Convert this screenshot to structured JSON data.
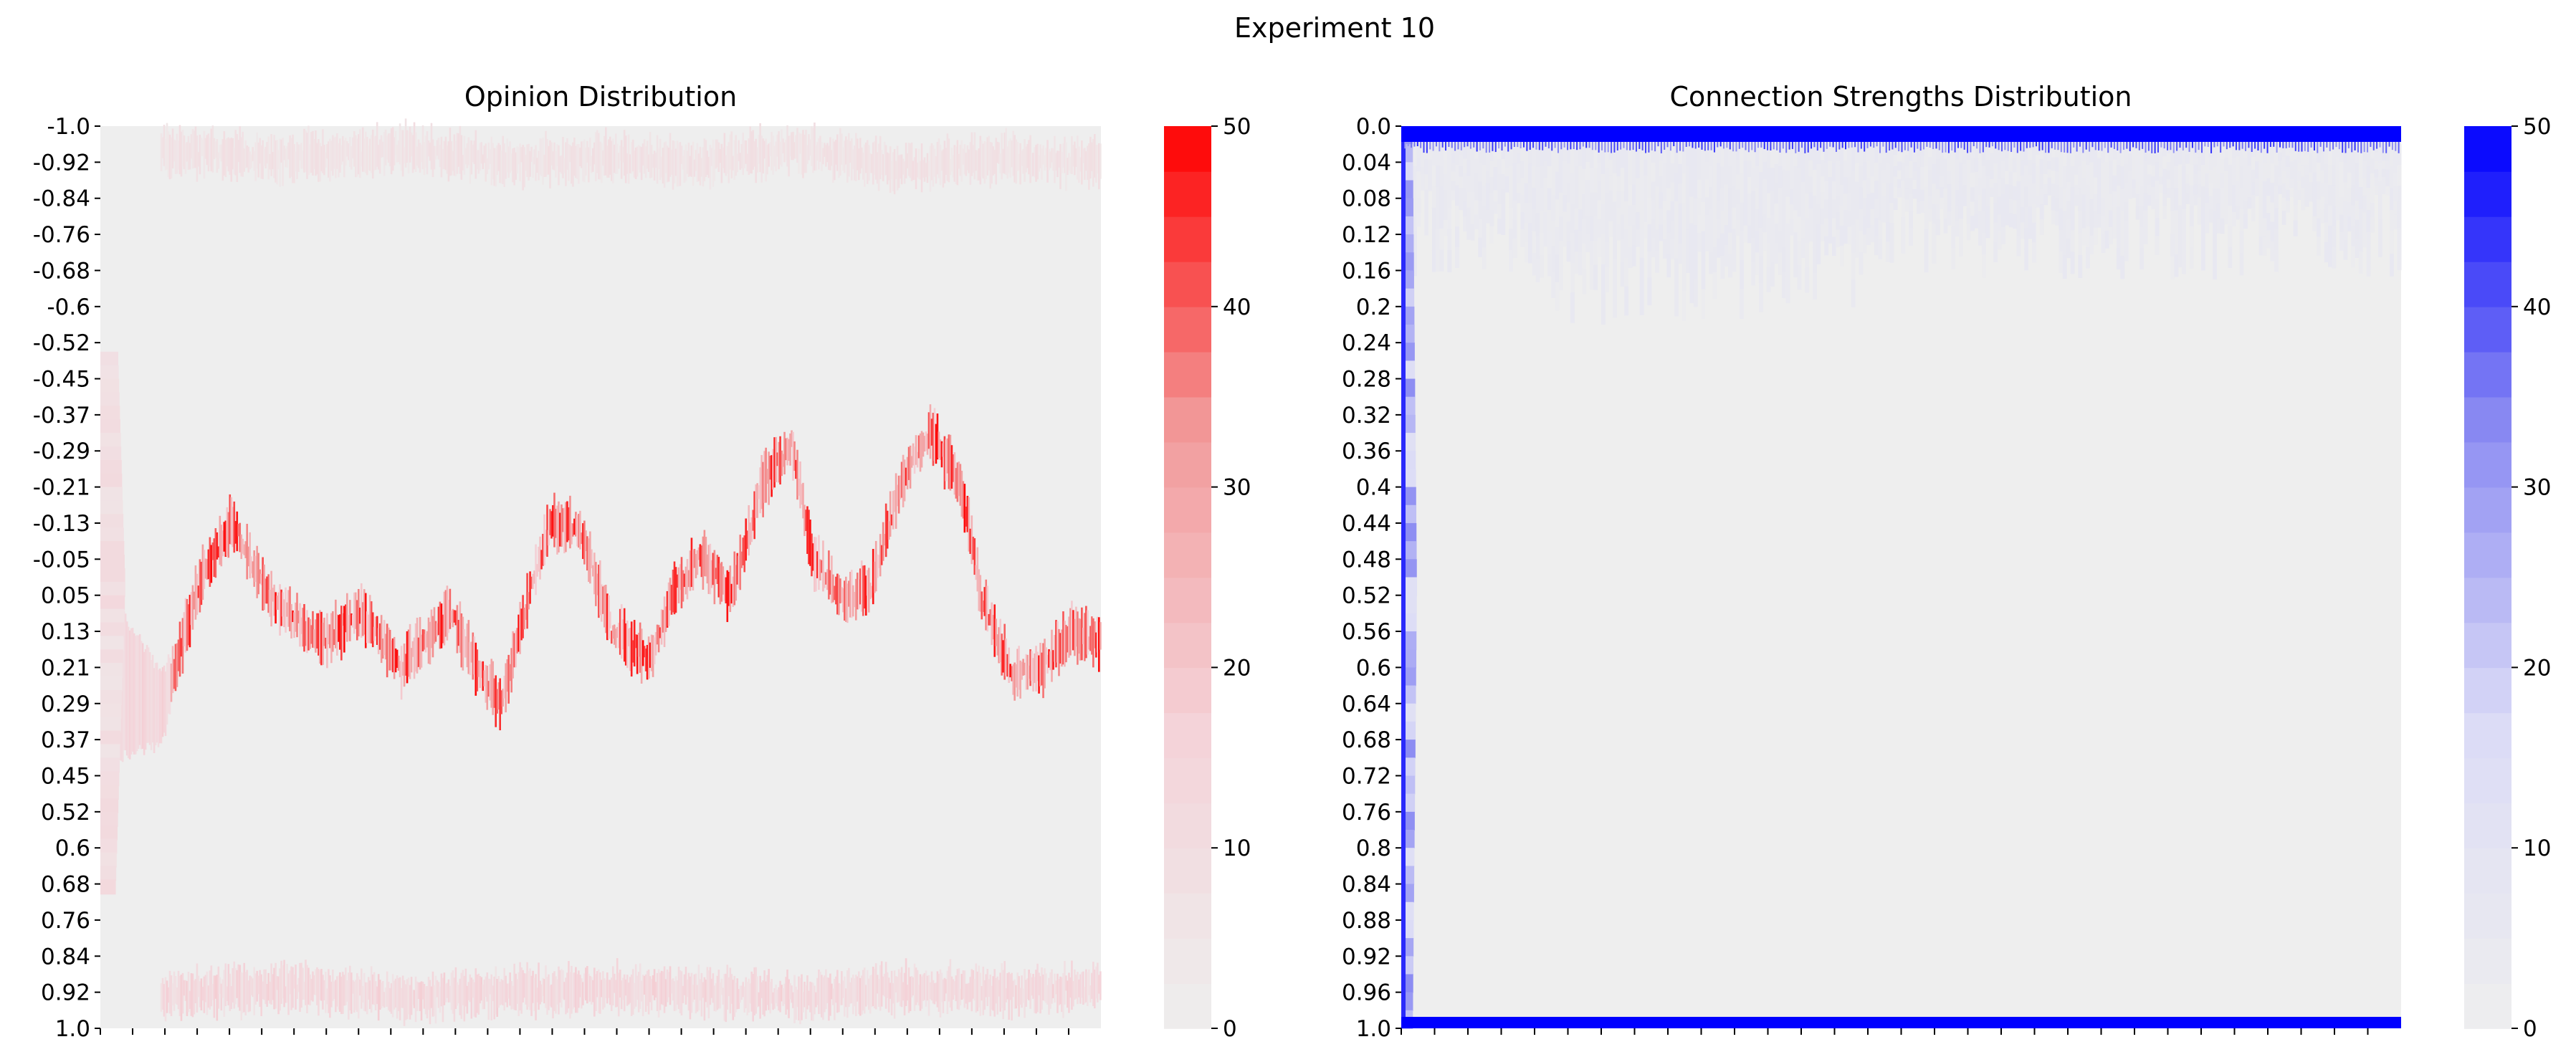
{
  "figure": {
    "title": "Experiment 10"
  },
  "chart_data": [
    {
      "type": "heatmap",
      "title": "Opinion Distribution",
      "xlabel": "",
      "ylabel": "",
      "y_tick_labels": [
        "-1.0",
        "-0.92",
        "-0.84",
        "-0.76",
        "-0.68",
        "-0.6",
        "-0.52",
        "-0.45",
        "-0.37",
        "-0.29",
        "-0.21",
        "-0.13",
        "-0.05",
        "0.05",
        "0.13",
        "0.21",
        "0.29",
        "0.37",
        "0.45",
        "0.52",
        "0.6",
        "0.68",
        "0.76",
        "0.84",
        "0.92",
        "1.0"
      ],
      "y_range": [
        -1.0,
        1.0
      ],
      "x_tick_count": 31,
      "x_tick_labels_visible": false,
      "colorbar": {
        "min": 0,
        "max": 50,
        "ticks": [
          0,
          10,
          20,
          30,
          40,
          50
        ],
        "levels": 20,
        "colors": [
          "#eeeeee",
          "#f4d2d8",
          "#f29a9a",
          "#ff0000"
        ]
      },
      "background_color": "#eeeeee",
      "series": [
        {
          "band": "upper cluster",
          "opinion_center": -0.93,
          "count_peak": 10,
          "path": [
            [
              0.0,
              -0.95
            ],
            [
              0.1,
              -0.94
            ],
            [
              0.2,
              -0.93
            ],
            [
              0.3,
              -0.95
            ],
            [
              0.4,
              -0.92
            ],
            [
              0.5,
              -0.93
            ],
            [
              0.6,
              -0.92
            ],
            [
              0.7,
              -0.95
            ],
            [
              0.8,
              -0.91
            ],
            [
              0.9,
              -0.93
            ],
            [
              1.0,
              -0.92
            ]
          ]
        },
        {
          "band": "central cluster",
          "opinion_center": 0.1,
          "count_peak": 50,
          "path": [
            [
              0.0,
              0.22
            ],
            [
              0.04,
              0.26
            ],
            [
              0.06,
              0.3
            ],
            [
              0.1,
              0.0
            ],
            [
              0.13,
              -0.12
            ],
            [
              0.17,
              0.05
            ],
            [
              0.22,
              0.14
            ],
            [
              0.26,
              0.08
            ],
            [
              0.3,
              0.2
            ],
            [
              0.35,
              0.08
            ],
            [
              0.38,
              0.22
            ],
            [
              0.4,
              0.28
            ],
            [
              0.43,
              0.02
            ],
            [
              0.45,
              -0.12
            ],
            [
              0.48,
              -0.1
            ],
            [
              0.51,
              0.12
            ],
            [
              0.55,
              0.18
            ],
            [
              0.57,
              0.04
            ],
            [
              0.6,
              -0.05
            ],
            [
              0.63,
              0.04
            ],
            [
              0.66,
              -0.2
            ],
            [
              0.69,
              -0.3
            ],
            [
              0.71,
              -0.05
            ],
            [
              0.74,
              0.05
            ],
            [
              0.77,
              0.02
            ],
            [
              0.8,
              -0.22
            ],
            [
              0.83,
              -0.32
            ],
            [
              0.86,
              -0.2
            ],
            [
              0.88,
              0.05
            ],
            [
              0.91,
              0.22
            ],
            [
              0.94,
              0.2
            ],
            [
              0.97,
              0.12
            ],
            [
              1.0,
              0.14
            ]
          ]
        },
        {
          "band": "lower cluster",
          "opinion_center": 0.92,
          "count_peak": 18,
          "path": [
            [
              0.0,
              0.94
            ],
            [
              0.1,
              0.92
            ],
            [
              0.2,
              0.91
            ],
            [
              0.3,
              0.93
            ],
            [
              0.4,
              0.92
            ],
            [
              0.5,
              0.91
            ],
            [
              0.6,
              0.92
            ],
            [
              0.7,
              0.93
            ],
            [
              0.8,
              0.91
            ],
            [
              0.9,
              0.92
            ],
            [
              1.0,
              0.91
            ]
          ]
        }
      ]
    },
    {
      "type": "heatmap",
      "title": "Connection Strengths Distribution",
      "xlabel": "",
      "ylabel": "",
      "y_tick_labels": [
        "0.0",
        "0.04",
        "0.08",
        "0.12",
        "0.16",
        "0.2",
        "0.24",
        "0.28",
        "0.32",
        "0.36",
        "0.4",
        "0.44",
        "0.48",
        "0.52",
        "0.56",
        "0.6",
        "0.64",
        "0.68",
        "0.72",
        "0.76",
        "0.8",
        "0.84",
        "0.88",
        "0.92",
        "0.96",
        "1.0"
      ],
      "y_range": [
        0.0,
        1.0
      ],
      "x_tick_count": 30,
      "x_tick_labels_visible": false,
      "colorbar": {
        "min": 0,
        "max": 50,
        "ticks": [
          0,
          10,
          20,
          30,
          40,
          50
        ],
        "levels": 20,
        "colors": [
          "#eeeeee",
          "#dcdcf6",
          "#8c8cf2",
          "#0000ff"
        ]
      },
      "background_color": "#eeeeee",
      "features": [
        {
          "band": "strength 0.0",
          "count": 50
        },
        {
          "band": "strength 1.0",
          "count": 50
        },
        {
          "band": "strength 0.0-0.2 haze",
          "count_peak": 6
        },
        {
          "band": "initial spread at first time steps",
          "count_peak": 30
        }
      ]
    }
  ]
}
